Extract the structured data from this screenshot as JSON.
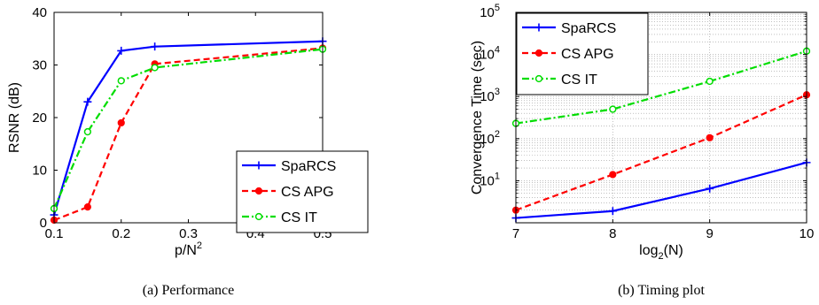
{
  "chart_data": [
    {
      "type": "line",
      "caption": "(a) Performance",
      "xlabel": "p/N",
      "xlabel_sup": "2",
      "ylabel": "RSNR (dB)",
      "xlim": [
        0.1,
        0.5
      ],
      "ylim": [
        0,
        40
      ],
      "xticks": [
        0.1,
        0.2,
        0.3,
        0.4,
        0.5
      ],
      "xtick_labels": [
        "0.1",
        "0.2",
        "0.3",
        "0.4",
        "0.5"
      ],
      "yticks": [
        0,
        10,
        20,
        30,
        40
      ],
      "ytick_labels": [
        "0",
        "10",
        "20",
        "30",
        "40"
      ],
      "y_scale": "linear",
      "grid": false,
      "legend_position": "bottom-right",
      "x": [
        0.1,
        0.15,
        0.2,
        0.25,
        0.5
      ],
      "series": [
        {
          "name": "SpaRCS",
          "color": "#0000ff",
          "dash": "solid",
          "marker": "plus",
          "values": [
            1.5,
            23,
            32.7,
            33.5,
            34.5
          ]
        },
        {
          "name": "CS APG",
          "color": "#ff0000",
          "dash": "dashed",
          "marker": "dot",
          "values": [
            0.5,
            3,
            19,
            30.2,
            33.2
          ]
        },
        {
          "name": "CS IT",
          "color": "#00dd00",
          "dash": "dashdot",
          "marker": "circle",
          "values": [
            2.7,
            17.3,
            27,
            29.5,
            33
          ]
        }
      ]
    },
    {
      "type": "line",
      "caption": "(b) Timing plot",
      "xlabel": "log",
      "xlabel_sub": "2",
      "xlabel_suffix": "(N)",
      "ylabel": "Convergence Time (sec)",
      "xlim": [
        7,
        10
      ],
      "ylim": [
        1,
        100000
      ],
      "xticks": [
        7,
        8,
        9,
        10
      ],
      "xtick_labels": [
        "7",
        "8",
        "9",
        "10"
      ],
      "yticks": [
        10,
        100,
        1000,
        10000,
        100000
      ],
      "ytick_base": "10",
      "ytick_exps": [
        "1",
        "2",
        "3",
        "4",
        "5"
      ],
      "y_scale": "log",
      "grid": true,
      "legend_position": "top-left",
      "x": [
        7,
        8,
        9,
        10
      ],
      "series": [
        {
          "name": "SpaRCS",
          "color": "#0000ff",
          "dash": "solid",
          "marker": "plus",
          "values": [
            1.3,
            1.9,
            6.5,
            27
          ]
        },
        {
          "name": "CS APG",
          "color": "#ff0000",
          "dash": "dashed",
          "marker": "dot",
          "values": [
            2.0,
            14,
            105,
            1100
          ]
        },
        {
          "name": "CS IT",
          "color": "#00dd00",
          "dash": "dashdot",
          "marker": "circle",
          "values": [
            230,
            500,
            2300,
            12000
          ]
        }
      ]
    }
  ]
}
